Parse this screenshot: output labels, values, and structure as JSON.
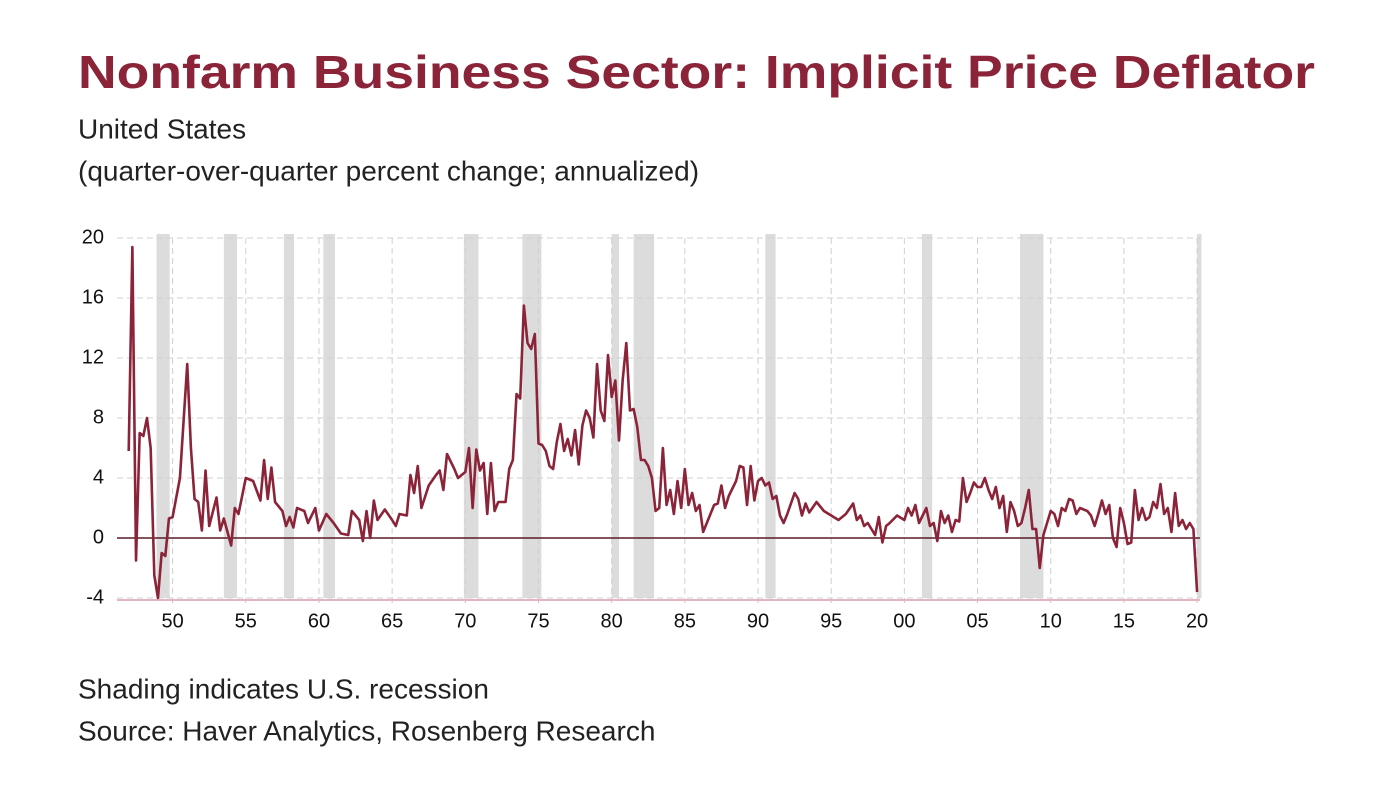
{
  "chart_data": {
    "type": "line",
    "title": "Nonfarm Business Sector: Implicit Price Deflator",
    "subtitle": [
      "United States",
      "(quarter-over-quarter percent change; annualized)"
    ],
    "notes": [
      "Shading indicates U.S. recession",
      "Source: Haver Analytics, Rosenberg Research"
    ],
    "xlim": [
      1946.2,
      2020.2
    ],
    "xticks": [
      {
        "value": 1950,
        "label": "50"
      },
      {
        "value": 1955,
        "label": "55"
      },
      {
        "value": 1960,
        "label": "60"
      },
      {
        "value": 1965,
        "label": "65"
      },
      {
        "value": 1970,
        "label": "70"
      },
      {
        "value": 1975,
        "label": "75"
      },
      {
        "value": 1980,
        "label": "80"
      },
      {
        "value": 1985,
        "label": "85"
      },
      {
        "value": 1990,
        "label": "90"
      },
      {
        "value": 1995,
        "label": "95"
      },
      {
        "value": 2000,
        "label": "00"
      },
      {
        "value": 2005,
        "label": "05"
      },
      {
        "value": 2010,
        "label": "10"
      },
      {
        "value": 2015,
        "label": "15"
      },
      {
        "value": 2020,
        "label": "20"
      }
    ],
    "ylim": [
      -4,
      20
    ],
    "yticks": [
      -4,
      0,
      4,
      8,
      12,
      16,
      20
    ],
    "grid": true,
    "recessions": [
      [
        1948.9,
        1949.8
      ],
      [
        1953.5,
        1954.4
      ],
      [
        1957.6,
        1958.3
      ],
      [
        1960.3,
        1961.1
      ],
      [
        1969.9,
        1970.9
      ],
      [
        1973.9,
        1975.2
      ],
      [
        1980.0,
        1980.5
      ],
      [
        1981.5,
        1982.9
      ],
      [
        1990.5,
        1991.2
      ],
      [
        2001.2,
        2001.9
      ],
      [
        2007.9,
        2009.5
      ],
      [
        2020.0,
        2020.3
      ]
    ],
    "recession_color": "#dcdcdc",
    "series": [
      {
        "name": "Implicit Price Deflator",
        "color": "#8b2439",
        "x": [
          1947.0,
          1947.25,
          1947.5,
          1947.75,
          1948.0,
          1948.25,
          1948.5,
          1948.75,
          1949.0,
          1949.25,
          1949.5,
          1949.75,
          1950.0,
          1950.5,
          1951.0,
          1951.25,
          1951.5,
          1951.75,
          1952.0,
          1952.25,
          1952.5,
          1953.0,
          1953.25,
          1953.5,
          1954.0,
          1954.25,
          1954.5,
          1955.0,
          1955.5,
          1956.0,
          1956.25,
          1956.5,
          1956.75,
          1957.0,
          1957.5,
          1957.75,
          1958.0,
          1958.25,
          1958.5,
          1959.0,
          1959.25,
          1959.75,
          1960.0,
          1960.5,
          1961.0,
          1961.5,
          1962.0,
          1962.25,
          1962.75,
          1963.0,
          1963.25,
          1963.5,
          1963.75,
          1964.0,
          1964.5,
          1965.0,
          1965.25,
          1965.5,
          1966.0,
          1966.25,
          1966.5,
          1966.75,
          1967.0,
          1967.5,
          1968.0,
          1968.25,
          1968.5,
          1968.75,
          1969.25,
          1969.5,
          1970.0,
          1970.25,
          1970.5,
          1970.75,
          1971.0,
          1971.25,
          1971.5,
          1971.75,
          1972.0,
          1972.25,
          1972.75,
          1973.0,
          1973.25,
          1973.5,
          1973.75,
          1974.0,
          1974.25,
          1974.5,
          1974.75,
          1975.0,
          1975.25,
          1975.5,
          1975.75,
          1976.0,
          1976.25,
          1976.5,
          1976.75,
          1977.0,
          1977.25,
          1977.5,
          1977.75,
          1978.0,
          1978.25,
          1978.5,
          1978.75,
          1979.0,
          1979.25,
          1979.5,
          1979.75,
          1980.0,
          1980.25,
          1980.5,
          1980.75,
          1981.0,
          1981.25,
          1981.5,
          1981.75,
          1982.0,
          1982.25,
          1982.5,
          1982.75,
          1983.0,
          1983.25,
          1983.5,
          1983.75,
          1984.0,
          1984.25,
          1984.5,
          1984.75,
          1985.0,
          1985.25,
          1985.5,
          1985.75,
          1986.0,
          1986.25,
          1986.5,
          1987.0,
          1987.25,
          1987.5,
          1987.75,
          1988.0,
          1988.5,
          1988.75,
          1989.0,
          1989.25,
          1989.5,
          1989.75,
          1990.0,
          1990.25,
          1990.5,
          1990.75,
          1991.0,
          1991.25,
          1991.5,
          1991.75,
          1992.0,
          1992.5,
          1992.75,
          1993.0,
          1993.25,
          1993.5,
          1994.0,
          1994.5,
          1995.0,
          1995.5,
          1996.0,
          1996.5,
          1996.75,
          1997.0,
          1997.25,
          1997.5,
          1998.0,
          1998.25,
          1998.5,
          1998.75,
          1999.0,
          1999.5,
          2000.0,
          2000.25,
          2000.5,
          2000.75,
          2001.0,
          2001.5,
          2001.75,
          2002.0,
          2002.25,
          2002.5,
          2002.75,
          2003.0,
          2003.25,
          2003.5,
          2003.75,
          2004.0,
          2004.25,
          2004.5,
          2004.75,
          2005.0,
          2005.25,
          2005.5,
          2005.75,
          2006.0,
          2006.25,
          2006.5,
          2006.75,
          2007.0,
          2007.25,
          2007.5,
          2007.75,
          2008.0,
          2008.25,
          2008.5,
          2008.75,
          2009.0,
          2009.25,
          2009.5,
          2009.75,
          2010.0,
          2010.25,
          2010.5,
          2010.75,
          2011.0,
          2011.25,
          2011.5,
          2011.75,
          2012.0,
          2012.5,
          2012.75,
          2013.0,
          2013.25,
          2013.5,
          2013.75,
          2014.0,
          2014.25,
          2014.5,
          2014.75,
          2015.0,
          2015.25,
          2015.5,
          2015.75,
          2016.0,
          2016.25,
          2016.5,
          2016.75,
          2017.0,
          2017.25,
          2017.5,
          2017.75,
          2018.0,
          2018.25,
          2018.5,
          2018.75,
          2019.0,
          2019.25,
          2019.5,
          2019.75,
          2020.0
        ],
        "values": [
          5.8,
          19.4,
          -1.5,
          7,
          6.8,
          8,
          6,
          -2.5,
          -4,
          -1,
          -1.2,
          1.3,
          1.4,
          4,
          11.6,
          6,
          2.6,
          2.4,
          0.5,
          4.5,
          0.8,
          2.7,
          0.5,
          1.3,
          -0.5,
          2,
          1.6,
          4,
          3.8,
          2.5,
          5.2,
          2.6,
          4.7,
          2.4,
          1.8,
          0.8,
          1.4,
          0.7,
          2,
          1.8,
          1,
          2,
          0.5,
          1.6,
          1,
          0.3,
          0.2,
          1.8,
          1.2,
          -0.2,
          1.8,
          0,
          2.5,
          1.2,
          1.9,
          1.2,
          0.8,
          1.6,
          1.5,
          4.2,
          3,
          4.8,
          2,
          3.5,
          4.2,
          4.5,
          3.2,
          5.6,
          4.6,
          4,
          4.4,
          6,
          2,
          5.9,
          4.5,
          5,
          1.6,
          5,
          1.8,
          2.4,
          2.4,
          4.6,
          5.2,
          9.6,
          9.3,
          15.5,
          13,
          12.6,
          13.6,
          6.3,
          6.2,
          5.8,
          4.8,
          4.6,
          6.4,
          7.6,
          5.8,
          6.6,
          5.5,
          7.2,
          4.9,
          7.5,
          8.5,
          8,
          6.7,
          11.6,
          8.5,
          7.8,
          12.2,
          9.4,
          10.5,
          6.5,
          10.5,
          13,
          8.5,
          8.6,
          7.4,
          5.2,
          5.2,
          4.8,
          4,
          1.8,
          2,
          6,
          2.2,
          3.2,
          1.6,
          3.8,
          2,
          4.6,
          2.2,
          3,
          1.8,
          2.2,
          0.4,
          1,
          2.2,
          2.3,
          3.5,
          2,
          2.8,
          3.8,
          4.8,
          4.7,
          2.2,
          4.8,
          2.5,
          3.8,
          4,
          3.5,
          3.7,
          2.6,
          2.8,
          1.5,
          1,
          1.6,
          3,
          2.6,
          1.5,
          2.3,
          1.7,
          2.4,
          1.8,
          1.5,
          1.2,
          1.6,
          2.3,
          1.2,
          1.5,
          0.8,
          1,
          0.2,
          1.4,
          -0.3,
          0.8,
          1,
          1.5,
          1.2,
          2,
          1.5,
          2.2,
          1,
          2,
          0.8,
          1,
          -0.2,
          1.8,
          1,
          1.5,
          0.4,
          1.2,
          1.1,
          4,
          2.4,
          3,
          3.7,
          3.4,
          3.4,
          4,
          3.2,
          2.6,
          3.4,
          2,
          2.8,
          0.4,
          2.4,
          1.8,
          0.8,
          1,
          2,
          3.2,
          0.6,
          0.6,
          -2,
          0.2,
          1,
          1.8,
          1.6,
          0.8,
          2,
          1.8,
          2.6,
          2.5,
          1.6,
          2,
          1.8,
          1.5,
          0.8,
          1.6,
          2.5,
          1.6,
          2.2,
          0,
          -0.6,
          2,
          1,
          -0.4,
          -0.3,
          3.2,
          1.2,
          2,
          1.2,
          1.4,
          2.4,
          2,
          3.6,
          1.6,
          2,
          0.4,
          3,
          0.8,
          1.2,
          0.6,
          1,
          0.6,
          -3.6
        ]
      }
    ]
  }
}
